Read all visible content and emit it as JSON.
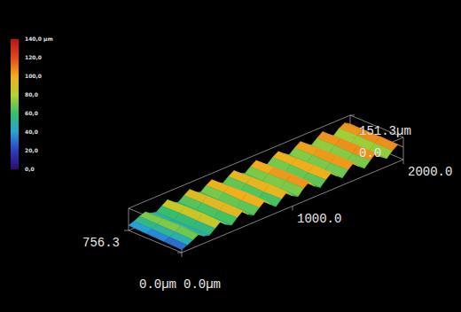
{
  "chart_data": {
    "type": "surface",
    "x": [
      0,
      50,
      100,
      150,
      200,
      250,
      300,
      350,
      400,
      450,
      500,
      550,
      600,
      650,
      700,
      750,
      800,
      850,
      900,
      950,
      1000,
      1050,
      1100,
      1150,
      1200,
      1250,
      1300,
      1350,
      1400,
      1450,
      1500,
      1550,
      1600,
      1650,
      1700,
      1750,
      1800,
      1850,
      1900,
      1950,
      2000
    ],
    "y": [
      0,
      252.1,
      504.2,
      756.3
    ],
    "z": [
      [
        20,
        35,
        55,
        75,
        50,
        40,
        70,
        100,
        65,
        45,
        80,
        110,
        70,
        50,
        85,
        115,
        75,
        45,
        80,
        112,
        70,
        50,
        90,
        118,
        72,
        48,
        85,
        115,
        78,
        50,
        88,
        120,
        80,
        52,
        90,
        122,
        82,
        55,
        92,
        118,
        85
      ],
      [
        25,
        40,
        60,
        85,
        55,
        42,
        72,
        105,
        68,
        46,
        78,
        112,
        74,
        48,
        82,
        118,
        78,
        47,
        78,
        115,
        72,
        52,
        92,
        120,
        75,
        50,
        82,
        117,
        80,
        52,
        86,
        122,
        82,
        54,
        88,
        124,
        84,
        57,
        94,
        120,
        88
      ],
      [
        30,
        45,
        62,
        80,
        52,
        44,
        75,
        102,
        66,
        48,
        82,
        108,
        72,
        52,
        88,
        112,
        74,
        50,
        84,
        110,
        74,
        54,
        88,
        116,
        76,
        52,
        88,
        112,
        82,
        55,
        90,
        118,
        84,
        56,
        92,
        120,
        86,
        58,
        96,
        116,
        90
      ],
      [
        35,
        48,
        65,
        78,
        55,
        46,
        72,
        98,
        64,
        50,
        80,
        105,
        70,
        55,
        85,
        108,
        72,
        52,
        82,
        106,
        72,
        56,
        86,
        112,
        74,
        54,
        86,
        110,
        80,
        56,
        88,
        114,
        82,
        58,
        90,
        118,
        84,
        60,
        94,
        114,
        92
      ]
    ],
    "xlim": [
      0,
      2000
    ],
    "ylim": [
      0,
      756.3
    ],
    "zlim": [
      0,
      151.3
    ],
    "xticks": [
      {
        "value": 0,
        "label": "0.0µm"
      },
      {
        "value": 1000,
        "label": "1000.0"
      },
      {
        "value": 2000,
        "label": "2000.0"
      }
    ],
    "yticks": [
      {
        "value": 0,
        "label": "0.0µm"
      },
      {
        "value": 756.3,
        "label": "756.3"
      }
    ],
    "zticks": [
      {
        "value": 0,
        "label": "0.0"
      },
      {
        "value": 151.3,
        "label": "151.3µm"
      }
    ],
    "colorbar": {
      "range": [
        0,
        140
      ],
      "ticks": [
        {
          "value": 140,
          "label": "140,0 µm"
        },
        {
          "value": 120,
          "label": "120,0"
        },
        {
          "value": 100,
          "label": "100,0"
        },
        {
          "value": 80,
          "label": "80,0"
        },
        {
          "value": 60,
          "label": "60,0"
        },
        {
          "value": 40,
          "label": "40,0"
        },
        {
          "value": 20,
          "label": "20,0"
        },
        {
          "value": 0,
          "label": "0,0"
        }
      ]
    }
  }
}
